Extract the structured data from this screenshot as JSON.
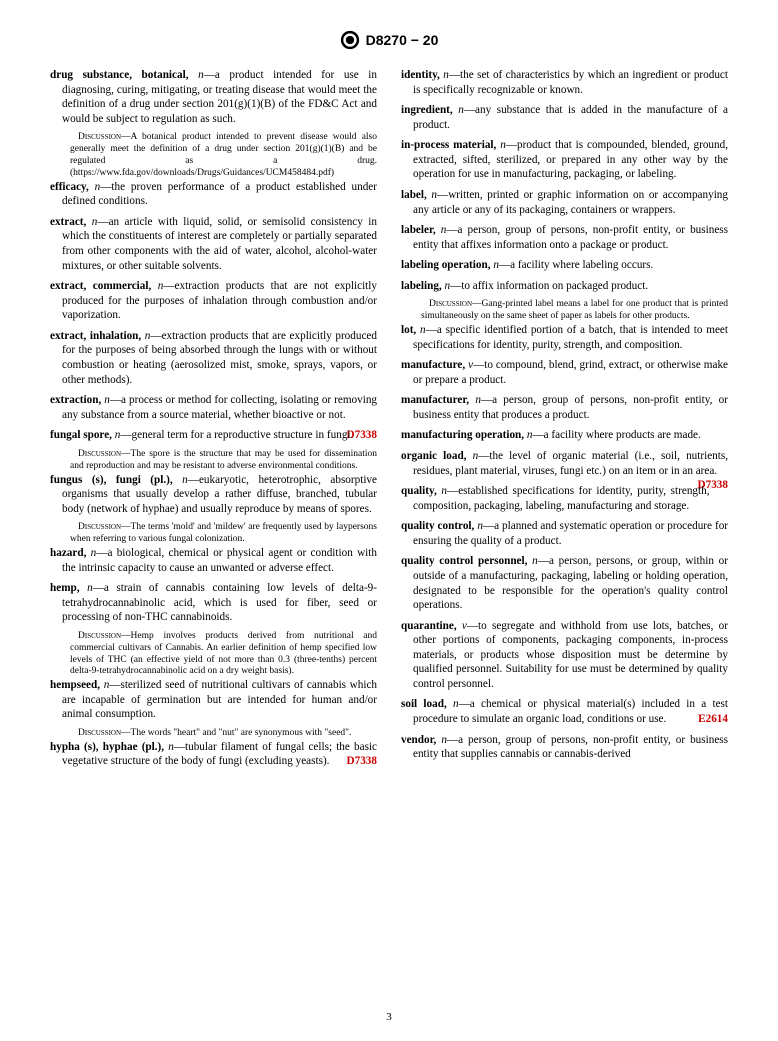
{
  "header": {
    "doc_id": "D8270 − 20"
  },
  "page_number": "3",
  "colors": {
    "ref": "#cc0000",
    "text": "#000000",
    "bg": "#ffffff"
  },
  "entries": [
    {
      "term": "drug substance, botanical,",
      "pos": "n",
      "def": "—a product intended for use in diagnosing, curing, mitigating, or treating disease that would meet the definition of a drug under section 201(g)(1)(B) of the FD&C Act and would be subject to regulation as such.",
      "discussion": "A botanical product intended to prevent disease would also generally meet the definition of a drug under section 201(g)(1)(B) and be regulated as a drug. (https://www.fda.gov/downloads/Drugs/Guidances/UCM458484.pdf)"
    },
    {
      "term": "efficacy,",
      "pos": "n",
      "def": "—the proven performance of a product established under defined conditions."
    },
    {
      "term": "extract,",
      "pos": "n",
      "def": "—an article with liquid, solid, or semisolid consistency in which the constituents of interest are completely or partially separated from other components with the aid of water, alcohol, alcohol-water mixtures, or other suitable solvents."
    },
    {
      "term": "extract, commercial,",
      "pos": "n",
      "def": "—extraction products that are not explicitly produced for the purposes of inhalation through combustion and/or vaporization."
    },
    {
      "term": "extract, inhalation,",
      "pos": "n",
      "def": "—extraction products that are explicitly produced for the purposes of being absorbed through the lungs with or without combustion or heating (aerosolized mist, smoke, sprays, vapors, or other methods)."
    },
    {
      "term": "extraction,",
      "pos": "n",
      "def": "—a process or method for collecting, isolating or removing any substance from a source material, whether bioactive or not."
    },
    {
      "term": "fungal spore,",
      "pos": "n",
      "def": "—general term for a reproductive structure in fungi.",
      "ref": "D7338",
      "discussion": "The spore is the structure that may be used for dissemination and reproduction and may be resistant to adverse environmental conditions."
    },
    {
      "term": "fungus (s), fungi (pl.),",
      "pos": "n",
      "def": "—eukaryotic, heterotrophic, absorptive organisms that usually develop a rather diffuse, branched, tubular body (network of hyphae) and usually reproduce by means of spores.",
      "discussion": "The terms 'mold' and 'mildew' are frequently used by laypersons when referring to various fungal colonization."
    },
    {
      "term": "hazard,",
      "pos": "n",
      "def": "—a biological, chemical or physical agent or condition with the intrinsic capacity to cause an unwanted or adverse effect."
    },
    {
      "term": "hemp,",
      "pos": "n",
      "def": "—a strain of cannabis containing low levels of delta-9-tetrahydrocannabinolic acid, which is used for fiber, seed or processing of non-THC cannabinoids.",
      "discussion": "Hemp involves products derived from nutritional and commercial cultivars of Cannabis. An earlier definition of hemp specified low levels of THC (an effective yield of not more than 0.3 (three-tenths) percent delta-9-tetrahydrocannabinolic acid on a dry weight basis)."
    },
    {
      "term": "hempseed,",
      "pos": "n",
      "def": "—sterilized seed of nutritional cultivars of cannabis which are incapable of germination but are intended for human and/or animal consumption.",
      "discussion": "The words \"heart\" and \"nut\" are synonymous with \"seed\"."
    },
    {
      "term": "hypha (s), hyphae (pl.),",
      "pos": "n",
      "def": "—tubular filament of fungal cells; the basic vegetative structure of the body of fungi (excluding yeasts).",
      "ref": "D7338"
    },
    {
      "term": "identity,",
      "pos": "n",
      "def": "—the set of characteristics by which an ingredient or product is specifically recognizable or known."
    },
    {
      "term": "ingredient,",
      "pos": "n",
      "def": "—any substance that is added in the manufacture of a product."
    },
    {
      "term": "in-process material,",
      "pos": "n",
      "def": "—product that is compounded, blended, ground, extracted, sifted, sterilized, or prepared in any other way by the operation for use in manufacturing, packaging, or labeling."
    },
    {
      "term": "label,",
      "pos": "n",
      "def": "—written, printed or graphic information on or accompanying any article or any of its packaging, containers or wrappers."
    },
    {
      "term": "labeler,",
      "pos": "n",
      "def": "—a person, group of persons, non-profit entity, or business entity that affixes information onto a package or product."
    },
    {
      "term": "labeling operation,",
      "pos": "n",
      "def": "—a facility where labeling occurs."
    },
    {
      "term": "labeling,",
      "pos": "n",
      "def": "—to affix information on packaged product.",
      "discussion": "Gang-printed label means a label for one product that is printed simultaneously on the same sheet of paper as labels for other products."
    },
    {
      "term": "lot,",
      "pos": "n",
      "def": "—a specific identified portion of a batch, that is intended to meet specifications for identity, purity, strength, and composition."
    },
    {
      "term": "manufacture,",
      "pos": "v",
      "def": "—to compound, blend, grind, extract, or otherwise make or prepare a product."
    },
    {
      "term": "manufacturer,",
      "pos": "n",
      "def": "—a person, group of persons, non-profit entity, or business entity that produces a product."
    },
    {
      "term": "manufacturing operation,",
      "pos": "n",
      "def": "—a facility where products are made."
    },
    {
      "term": "organic load,",
      "pos": "n",
      "def": "—the level of organic material (i.e., soil, nutrients, residues, plant material, viruses, fungi etc.) on an item or in an area.",
      "ref": "D7338"
    },
    {
      "term": "quality,",
      "pos": "n",
      "def": "—established specifications for identity, purity, strength, composition, packaging, labeling, manufacturing and storage."
    },
    {
      "term": "quality control,",
      "pos": "n",
      "def": "—a planned and systematic operation or procedure for ensuring the quality of a product."
    },
    {
      "term": "quality control personnel,",
      "pos": "n",
      "def": "—a person, persons, or group, within or outside of a manufacturing, packaging, labeling or holding operation, designated to be responsible for the operation's quality control operations."
    },
    {
      "term": "quarantine,",
      "pos": "v",
      "def": "—to segregate and withhold from use lots, batches, or other portions of components, packaging components, in-process materials, or products whose disposition must be determine by qualified personnel. Suitability for use must be determined by quality control personnel."
    },
    {
      "term": "soil load,",
      "pos": "n",
      "def": "—a chemical or physical material(s) included in a test procedure to simulate an organic load, conditions or use.",
      "ref": "E2614"
    },
    {
      "term": "vendor,",
      "pos": "n",
      "def": "—a person, group of persons, non-profit entity, or business entity that supplies cannabis or cannabis-derived"
    }
  ]
}
